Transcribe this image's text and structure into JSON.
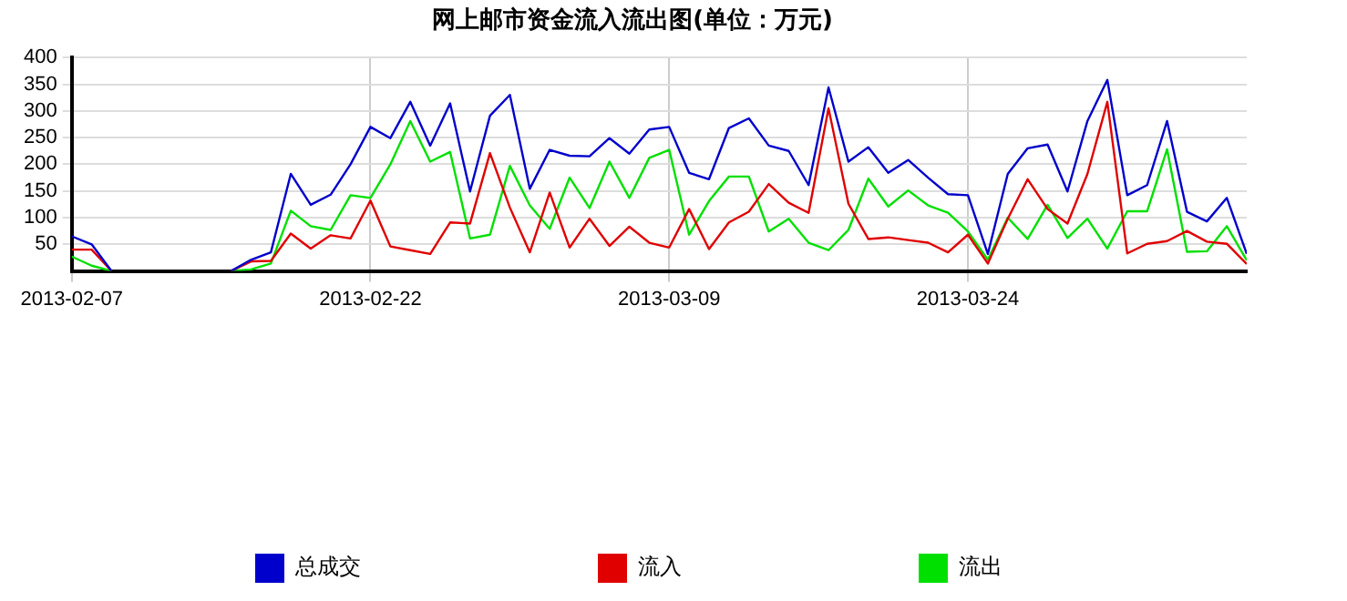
{
  "chart_data": {
    "type": "line",
    "title": "网上邮市资金流入流出图(单位：万元)",
    "x": [
      "2013-02-07",
      "2013-02-08",
      "2013-02-09",
      "2013-02-10",
      "2013-02-11",
      "2013-02-12",
      "2013-02-13",
      "2013-02-14",
      "2013-02-15",
      "2013-02-16",
      "2013-02-17",
      "2013-02-18",
      "2013-02-19",
      "2013-02-20",
      "2013-02-21",
      "2013-02-22",
      "2013-02-23",
      "2013-02-24",
      "2013-02-25",
      "2013-02-26",
      "2013-02-27",
      "2013-02-28",
      "2013-03-01",
      "2013-03-02",
      "2013-03-03",
      "2013-03-04",
      "2013-03-05",
      "2013-03-06",
      "2013-03-07",
      "2013-03-08",
      "2013-03-09",
      "2013-03-10",
      "2013-03-11",
      "2013-03-12",
      "2013-03-13",
      "2013-03-14",
      "2013-03-15",
      "2013-03-16",
      "2013-03-17",
      "2013-03-18",
      "2013-03-19",
      "2013-03-20",
      "2013-03-21",
      "2013-03-22",
      "2013-03-23",
      "2013-03-24",
      "2013-03-25",
      "2013-03-26",
      "2013-03-27",
      "2013-03-28",
      "2013-03-29",
      "2013-03-30",
      "2013-03-31",
      "2013-04-01",
      "2013-04-02",
      "2013-04-03",
      "2013-04-04",
      "2013-04-05",
      "2013-04-06",
      "2013-04-07"
    ],
    "series": [
      {
        "name": "总成交",
        "color": "#0000cc",
        "values": [
          65,
          50,
          0,
          null,
          null,
          null,
          null,
          null,
          0,
          21,
          35,
          182,
          124,
          143,
          200,
          270,
          249,
          317,
          235,
          314,
          149,
          291,
          330,
          154,
          227,
          216,
          215,
          249,
          220,
          265,
          270,
          184,
          172,
          268,
          286,
          235,
          225,
          161,
          344,
          205,
          232,
          184,
          208,
          175,
          144,
          142,
          32,
          182,
          230,
          237,
          149,
          281,
          358,
          142,
          161,
          281,
          111,
          93,
          137,
          32
        ]
      },
      {
        "name": "流入",
        "color": "#e00000",
        "values": [
          40,
          40,
          0,
          null,
          null,
          null,
          null,
          null,
          0,
          18,
          19,
          70,
          42,
          67,
          61,
          132,
          46,
          39,
          32,
          91,
          89,
          221,
          119,
          35,
          147,
          44,
          98,
          47,
          83,
          53,
          44,
          116,
          41,
          91,
          111,
          163,
          128,
          109,
          305,
          126,
          60,
          63,
          58,
          53,
          35,
          68,
          14,
          98,
          172,
          116,
          89,
          182,
          317,
          33,
          51,
          56,
          75,
          55,
          51,
          13
        ]
      },
      {
        "name": "流出",
        "color": "#00e000",
        "values": [
          27,
          10,
          0,
          null,
          null,
          null,
          null,
          null,
          0,
          3,
          14,
          113,
          84,
          77,
          142,
          137,
          200,
          281,
          205,
          223,
          61,
          68,
          197,
          123,
          79,
          175,
          118,
          205,
          137,
          212,
          227,
          68,
          131,
          177,
          177,
          74,
          98,
          53,
          39,
          77,
          173,
          121,
          151,
          123,
          109,
          74,
          21,
          100,
          60,
          124,
          62,
          98,
          42,
          112,
          112,
          228,
          36,
          37,
          84,
          20
        ]
      }
    ],
    "xlim": [
      "2013-02-07",
      "2013-04-07"
    ],
    "xticks": [
      "2013-02-07",
      "2013-02-22",
      "2013-03-09",
      "2013-03-24"
    ],
    "ylim": [
      0,
      400
    ],
    "yticks": [
      50,
      100,
      150,
      200,
      250,
      300,
      350,
      400
    ],
    "grid": true,
    "legend": "bottom left",
    "marker": "none",
    "line_style": "solid"
  }
}
